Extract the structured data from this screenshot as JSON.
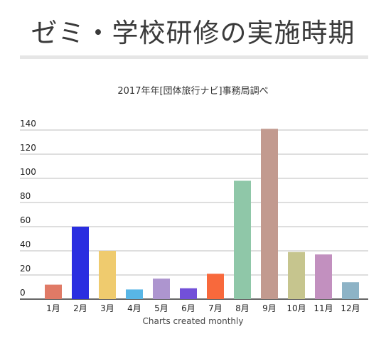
{
  "page": {
    "title": "ゼミ・学校研修の実施時期"
  },
  "chart_data": {
    "type": "bar",
    "title": "2017年年[団体旅行ナビ]事務局調べ",
    "xlabel": "Charts created monthly",
    "ylabel": "",
    "ylim": [
      0,
      140
    ],
    "yticks": [
      "0",
      "20",
      "40",
      "60",
      "80",
      "100",
      "120",
      "140"
    ],
    "grid": true,
    "categories": [
      "1月",
      "2月",
      "3月",
      "4月",
      "5月",
      "6月",
      "7月",
      "8月",
      "9月",
      "10月",
      "11月",
      "12月"
    ],
    "values": [
      12,
      60,
      40,
      8,
      17,
      9,
      21,
      98,
      141,
      39,
      37,
      14
    ],
    "colors": [
      "#e07a66",
      "#2a2ee0",
      "#efcb6e",
      "#58b6e6",
      "#ad95cf",
      "#7250d8",
      "#f8693c",
      "#8fc7a8",
      "#c29a8f",
      "#c6c58e",
      "#c290bf",
      "#8db3c6"
    ]
  }
}
